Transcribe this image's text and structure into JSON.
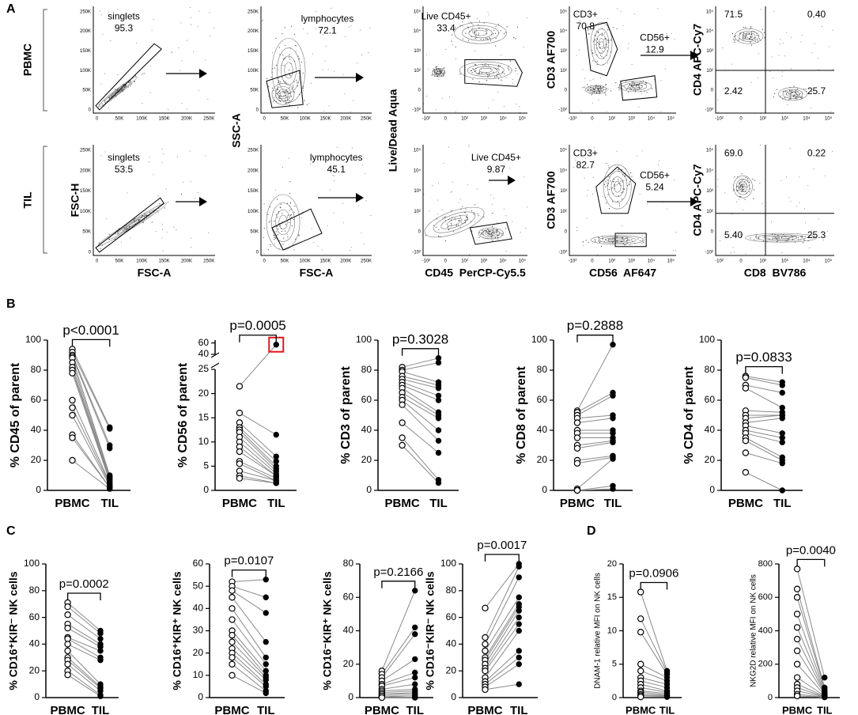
{
  "panel_labels": [
    "A",
    "B",
    "C",
    "D"
  ],
  "panel_a": {
    "row_labels": [
      "PBMC",
      "TIL"
    ],
    "shared_y_labels": [
      "SSC-A",
      "Live/Dead Aqua"
    ],
    "x_labels": [
      "FSC-A",
      "FSC-A",
      "CD45  PerCP-Cy5.5",
      "CD56  AF647",
      "CD8  BV786"
    ],
    "linear_ticks": [
      "0",
      "50K",
      "100K",
      "150K",
      "200K",
      "250K"
    ],
    "log_ticks": [
      "-10²",
      "0",
      "10²",
      "10³",
      "10⁴",
      "10⁵"
    ],
    "plots": [
      [
        {
          "gates": [
            {
              "name": "singlets",
              "value": "95.3"
            }
          ]
        },
        {
          "gates": [
            {
              "name": "lymphocytes",
              "value": "72.1"
            }
          ]
        },
        {
          "gates": [
            {
              "name": "Live CD45+",
              "value": "33.4"
            }
          ]
        },
        {
          "y_label": "CD3 AF700",
          "gates": [
            {
              "name": "CD3+",
              "value": "70.8"
            },
            {
              "name": "CD56+",
              "value": "12.9"
            }
          ]
        },
        {
          "y_label": "CD4 APC-Cy7",
          "gates": [
            {
              "value": "71.5"
            },
            {
              "value": "0.40"
            },
            {
              "value": "2.42"
            },
            {
              "value": "25.7"
            }
          ]
        }
      ],
      [
        {
          "y_label": "FSC-H",
          "gates": [
            {
              "name": "singlets",
              "value": "53.5"
            }
          ]
        },
        {
          "gates": [
            {
              "name": "lymphocytes",
              "value": "45.1"
            }
          ]
        },
        {
          "gates": [
            {
              "name": "Live CD45+",
              "value": "9.87"
            }
          ]
        },
        {
          "y_label": "CD3 AF700",
          "gates": [
            {
              "name": "CD3+",
              "value": "82.7"
            },
            {
              "name": "CD56+",
              "value": "5.24"
            }
          ]
        },
        {
          "y_label": "CD4 APC-Cy7",
          "gates": [
            {
              "value": "69.0"
            },
            {
              "value": "0.22"
            },
            {
              "value": "5.40"
            },
            {
              "value": "25.3"
            }
          ]
        }
      ]
    ]
  },
  "chart_data": [
    {
      "type": "paired",
      "ylabel": "% CD45 of parent",
      "categories": [
        "PBMC",
        "TIL"
      ],
      "annotation": "p<0.0001",
      "ylim": [
        0,
        100
      ],
      "yticks": [
        0,
        20,
        40,
        60,
        80,
        100
      ],
      "markers": [
        "open",
        "filled"
      ],
      "values": [
        [
          94,
          92,
          90,
          89,
          88,
          85,
          82,
          80,
          78,
          60,
          55,
          50,
          37,
          35,
          20
        ],
        [
          42,
          41,
          30,
          28,
          10,
          9,
          8,
          7,
          6,
          5,
          4,
          3,
          2,
          2,
          1
        ]
      ]
    },
    {
      "type": "paired",
      "ylabel": "% CD56 of parent",
      "categories": [
        "PBMC",
        "TIL"
      ],
      "annotation": "p=0.0005",
      "ylim": [
        0,
        25
      ],
      "yticks": [
        0,
        5,
        10,
        15,
        20,
        25
      ],
      "ylim_upper": [
        40,
        65
      ],
      "yticks_upper": [
        40,
        60
      ],
      "highlight": [
        1,
        0
      ],
      "highlight_color": "#e8141c",
      "markers": [
        "open",
        "filled"
      ],
      "values": [
        [
          21.5,
          16,
          14,
          13,
          12.5,
          12,
          11,
          10,
          9,
          8,
          6,
          5.5,
          4,
          3,
          2.5
        ],
        [
          57,
          11.5,
          7,
          6,
          5,
          4.5,
          4,
          3.5,
          3,
          3,
          2.5,
          2,
          2,
          1.5,
          1.5
        ]
      ]
    },
    {
      "type": "paired",
      "ylabel": "% CD3 of parent",
      "categories": [
        "PBMC",
        "TIL"
      ],
      "annotation": "p=0.3028",
      "ylim": [
        0,
        100
      ],
      "yticks": [
        0,
        20,
        40,
        60,
        80,
        100
      ],
      "markers": [
        "open",
        "filled"
      ],
      "values": [
        [
          82,
          80,
          79,
          76,
          74,
          72,
          70,
          68,
          65,
          62,
          60,
          57,
          45,
          35,
          30
        ],
        [
          88,
          85,
          72,
          70,
          68,
          63,
          60,
          52,
          50,
          48,
          40,
          33,
          25,
          7,
          5
        ]
      ]
    },
    {
      "type": "paired",
      "ylabel": "% CD8 of parent",
      "categories": [
        "PBMC",
        "TIL"
      ],
      "annotation": "p=0.2888",
      "ylim": [
        0,
        100
      ],
      "yticks": [
        0,
        20,
        40,
        60,
        80,
        100
      ],
      "markers": [
        "open",
        "filled"
      ],
      "values": [
        [
          53,
          52,
          50,
          48,
          45,
          40,
          38,
          35,
          30,
          28,
          20,
          18,
          1,
          0,
          0
        ],
        [
          97,
          65,
          63,
          50,
          48,
          40,
          38,
          35,
          33,
          32,
          23,
          22,
          21,
          3,
          1
        ]
      ]
    },
    {
      "type": "paired",
      "ylabel": "% CD4 of parent",
      "categories": [
        "PBMC",
        "TIL"
      ],
      "annotation": "p=0.0833",
      "ylim": [
        0,
        100
      ],
      "yticks": [
        0,
        20,
        40,
        60,
        80,
        100
      ],
      "markers": [
        "open",
        "filled"
      ],
      "values": [
        [
          76,
          75,
          70,
          68,
          53,
          50,
          48,
          45,
          43,
          40,
          38,
          35,
          33,
          25,
          12
        ],
        [
          72,
          70,
          65,
          55,
          52,
          50,
          50,
          48,
          38,
          35,
          32,
          22,
          20,
          18,
          0
        ]
      ]
    },
    {
      "type": "paired",
      "ylabel": "% CD16⁺KIR⁻ NK cells",
      "categories": [
        "PBMC",
        "TIL"
      ],
      "annotation": "p=0.0002",
      "ylim": [
        0,
        100
      ],
      "yticks": [
        0,
        20,
        40,
        60,
        80,
        100
      ],
      "markers": [
        "open",
        "filled"
      ],
      "values": [
        [
          71,
          68,
          62,
          55,
          52,
          45,
          44,
          40,
          35,
          30,
          28,
          25,
          20,
          17
        ],
        [
          50,
          48,
          44,
          40,
          38,
          35,
          30,
          28,
          10,
          8,
          7,
          5,
          2,
          1
        ]
      ]
    },
    {
      "type": "paired",
      "ylabel": "% CD16⁺KIR⁺ NK cells",
      "categories": [
        "PBMC",
        "TIL"
      ],
      "annotation": "p=0.0107",
      "ylim": [
        0,
        60
      ],
      "yticks": [
        0,
        10,
        20,
        30,
        40,
        50,
        60
      ],
      "markers": [
        "open",
        "filled"
      ],
      "values": [
        [
          52,
          50,
          48,
          45,
          40,
          35,
          30,
          28,
          25,
          22,
          20,
          18,
          15,
          10
        ],
        [
          53,
          45,
          38,
          25,
          18,
          15,
          12,
          10,
          9,
          8,
          6,
          5,
          3,
          2
        ]
      ]
    },
    {
      "type": "paired",
      "ylabel": "% CD16⁻KIR⁺ NK cells",
      "categories": [
        "PBMC",
        "TIL"
      ],
      "annotation": "p=0.2166",
      "ylim": [
        0,
        80
      ],
      "yticks": [
        0,
        20,
        40,
        60,
        80
      ],
      "markers": [
        "open",
        "filled"
      ],
      "values": [
        [
          16,
          14,
          12,
          10,
          8,
          7,
          5,
          4,
          3,
          2,
          2,
          1,
          1,
          0
        ],
        [
          64,
          42,
          38,
          23,
          15,
          12,
          8,
          5,
          4,
          3,
          2,
          1,
          0,
          0
        ]
      ]
    },
    {
      "type": "paired",
      "ylabel": "% CD16⁻KIR⁻ NK cells",
      "categories": [
        "PBMC",
        "TIL"
      ],
      "annotation": "p=0.0017",
      "ylim": [
        0,
        100
      ],
      "yticks": [
        0,
        20,
        40,
        60,
        80,
        100
      ],
      "markers": [
        "open",
        "filled"
      ],
      "values": [
        [
          67,
          45,
          40,
          35,
          30,
          28,
          25,
          22,
          20,
          15,
          12,
          10,
          8,
          6
        ],
        [
          100,
          98,
          90,
          75,
          70,
          68,
          65,
          60,
          55,
          50,
          35,
          30,
          25,
          10
        ]
      ]
    },
    {
      "type": "paired",
      "ylabel": "DNAM-1 relative MFI on NK cells",
      "categories": [
        "PBMC",
        "TIL"
      ],
      "annotation": "p=0.0906",
      "ylim": [
        0,
        20
      ],
      "yticks": [
        0,
        5,
        10,
        15,
        20
      ],
      "markers": [
        "open",
        "filled"
      ],
      "values": [
        [
          15.8,
          11.8,
          9.8,
          5,
          4,
          3,
          2.5,
          2,
          1.5,
          1,
          0.8,
          0.5,
          0.3,
          0.1
        ],
        [
          4,
          3.8,
          3.5,
          3,
          2.5,
          2,
          1.5,
          1,
          0.8,
          0.6,
          0.4,
          0.3,
          0.2,
          0.1
        ]
      ]
    },
    {
      "type": "paired",
      "ylabel": "NKG2D relative MFI on NK cells",
      "categories": [
        "PBMC",
        "TIL"
      ],
      "annotation": "p=0.0040",
      "ylim": [
        0,
        800
      ],
      "yticks": [
        0,
        200,
        400,
        600,
        800
      ],
      "markers": [
        "open",
        "filled"
      ],
      "values": [
        [
          770,
          650,
          600,
          500,
          420,
          350,
          280,
          200,
          120,
          80,
          60,
          40,
          20,
          10
        ],
        [
          120,
          60,
          50,
          40,
          30,
          25,
          20,
          15,
          10,
          8,
          5,
          4,
          3,
          2
        ]
      ]
    }
  ]
}
